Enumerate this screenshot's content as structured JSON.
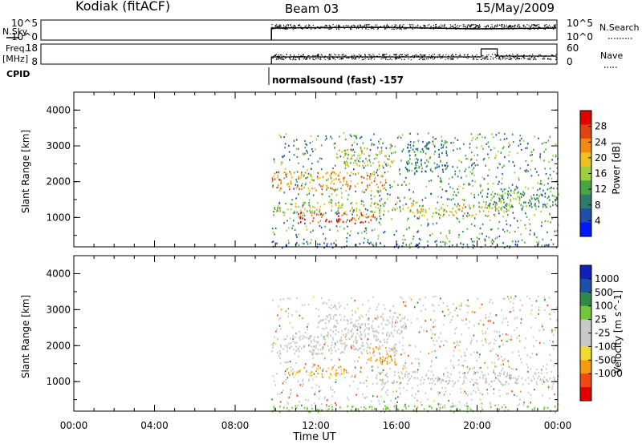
{
  "header": {
    "station": "Kodiak (fitACF)",
    "beam": "Beam 03",
    "date": "15/May/2009"
  },
  "summary_panels": {
    "nsky_label": "N.Sky",
    "nsky_ticks": [
      "10^5",
      "10^0"
    ],
    "nsearch_label": "N.Search",
    "nsearch_ticks": [
      "10^5",
      "10^0"
    ],
    "freq_label_line1": "Freq.",
    "freq_label_line2": "[MHz]",
    "freq_ticks": [
      "18",
      "8"
    ],
    "nave_label": "Nave",
    "nave_ticks": [
      "60",
      "0"
    ],
    "cpid_label": "CPID",
    "cpid_text": "normalsound (fast) -157"
  },
  "colors": {
    "power_scale": [
      "#0018ff",
      "#1f4fa8",
      "#2e7a6b",
      "#4aa548",
      "#9ccf3a",
      "#f0c020",
      "#f08a10",
      "#e04410",
      "#e00000"
    ],
    "velocity_scale": [
      "#e00000",
      "#f04a10",
      "#f89a10",
      "#f0dc30",
      "#c8c8c8",
      "#c8c8c8",
      "#70c838",
      "#2e8a48",
      "#1f4fa8",
      "#1020b8"
    ]
  },
  "chart_data": [
    {
      "type": "heatmap",
      "name": "",
      "ylabel": "Slant Range [km]",
      "yticks": [
        "4000",
        "3000",
        "2000",
        "1000"
      ],
      "ylim": [
        180,
        4500
      ],
      "xlim": [
        0,
        24
      ],
      "colorbar_label": "Power [dB]",
      "colorbar_ticks": [
        "28",
        "24",
        "20",
        "16",
        "12",
        "8",
        "4"
      ],
      "colorbar_range": [
        0,
        32
      ],
      "data_start_hour": 9.8,
      "bands": [
        {
          "t0": 9.8,
          "t1": 15.5,
          "r0": 1750,
          "r1": 2300,
          "value": 22
        },
        {
          "t0": 11.0,
          "t1": 15.0,
          "r0": 850,
          "r1": 1150,
          "value": 26
        },
        {
          "t0": 10.0,
          "t1": 17.5,
          "r0": 1150,
          "r1": 1450,
          "value": 17
        },
        {
          "t0": 13.0,
          "t1": 16.0,
          "r0": 2450,
          "r1": 2950,
          "value": 18
        },
        {
          "t0": 17.0,
          "t1": 21.5,
          "r0": 1050,
          "r1": 1400,
          "value": 18
        },
        {
          "t0": 20.0,
          "t1": 24.0,
          "r0": 1300,
          "r1": 1900,
          "value": 12
        },
        {
          "t0": 9.8,
          "t1": 24.0,
          "r0": 180,
          "r1": 320,
          "value": 8
        },
        {
          "t0": 16.5,
          "t1": 18.5,
          "r0": 2300,
          "r1": 3200,
          "value": 9
        }
      ]
    },
    {
      "type": "heatmap",
      "name": "",
      "ylabel": "Slant Range [km]",
      "xlabel": "Time UT",
      "yticks": [
        "4000",
        "3000",
        "2000",
        "1000"
      ],
      "xticks": [
        "00:00",
        "04:00",
        "08:00",
        "12:00",
        "16:00",
        "20:00",
        "00:00"
      ],
      "ylim": [
        180,
        4500
      ],
      "xlim": [
        0,
        24
      ],
      "colorbar_label": "Velocity [m s^-1]",
      "colorbar_ticks": [
        "1000",
        "500",
        "100",
        "25",
        "-25",
        "-100",
        "-500",
        "-1000"
      ],
      "data_start_hour": 9.8,
      "bands": [
        {
          "t0": 9.8,
          "t1": 16.0,
          "r0": 1800,
          "r1": 2300,
          "value": 0
        },
        {
          "t0": 10.5,
          "t1": 13.5,
          "r0": 1150,
          "r1": 1450,
          "value": -60
        },
        {
          "t0": 14.5,
          "t1": 16.0,
          "r0": 1500,
          "r1": 2000,
          "value": -80
        },
        {
          "t0": 12.0,
          "t1": 16.5,
          "r0": 2300,
          "r1": 2900,
          "value": 0
        },
        {
          "t0": 15.0,
          "t1": 24.0,
          "r0": 950,
          "r1": 1300,
          "value": 0
        },
        {
          "t0": 9.8,
          "t1": 24.0,
          "r0": 180,
          "r1": 350,
          "value": 60
        }
      ]
    }
  ]
}
